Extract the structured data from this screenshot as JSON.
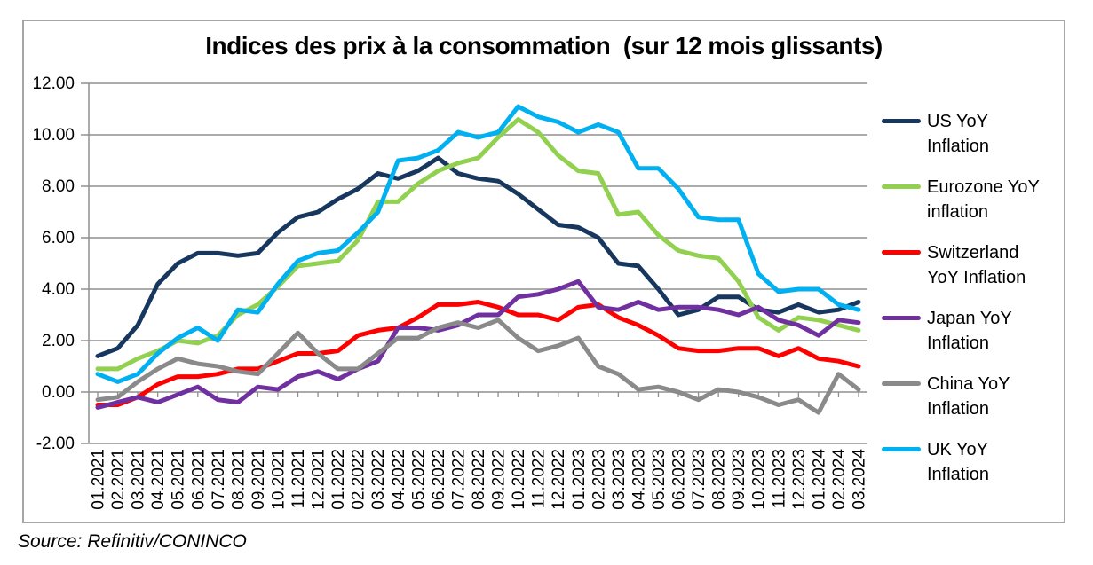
{
  "window": {
    "background_color": "#ffffff",
    "frame_border_color": "#a6a6a6"
  },
  "source_note": "Source: Refinitiv/CONINCO",
  "chart_data": {
    "type": "line",
    "title": "Indices des prix à la consommation  (sur 12 mois glissants)",
    "xlabel": "",
    "ylabel": "",
    "ylim": [
      -2,
      12
    ],
    "ytick_step": 2,
    "ytick_labels": [
      "12.00",
      "10.00",
      "8.00",
      "6.00",
      "4.00",
      "2.00",
      "0.00",
      "-2.00"
    ],
    "grid": true,
    "grid_color": "#8f8f8f",
    "legend_position": "right",
    "x_labels": [
      "01.2021",
      "02.2021",
      "03.2021",
      "04.2021",
      "05.2021",
      "06.2021",
      "07.2021",
      "08.2021",
      "09.2021",
      "10.2021",
      "11.2021",
      "12.2021",
      "01.2022",
      "02.2022",
      "03.2022",
      "04.2022",
      "05.2022",
      "06.2022",
      "07.2022",
      "08.2022",
      "09.2022",
      "10.2022",
      "11.2022",
      "12.2022",
      "01.2023",
      "02.2023",
      "03.2023",
      "04.2023",
      "05.2023",
      "06.2023",
      "07.2023",
      "08.2023",
      "09.2023",
      "10.2023",
      "11.2023",
      "12.2023",
      "01.2024",
      "02.2024",
      "03.2024"
    ],
    "series": [
      {
        "name": "US YoY Inflation",
        "legend_lines": [
          "US YoY",
          "Inflation"
        ],
        "color": "#17375E",
        "values": [
          1.4,
          1.7,
          2.6,
          4.2,
          5.0,
          5.4,
          5.4,
          5.3,
          5.4,
          6.2,
          6.8,
          7.0,
          7.5,
          7.9,
          8.5,
          8.3,
          8.6,
          9.1,
          8.5,
          8.3,
          8.2,
          7.7,
          7.1,
          6.5,
          6.4,
          6.0,
          5.0,
          4.9,
          4.0,
          3.0,
          3.2,
          3.7,
          3.7,
          3.2,
          3.1,
          3.4,
          3.1,
          3.2,
          3.5
        ]
      },
      {
        "name": "Eurozone YoY inflation",
        "legend_lines": [
          "Eurozone YoY",
          "inflation"
        ],
        "color": "#92D050",
        "values": [
          0.9,
          0.9,
          1.3,
          1.6,
          2.0,
          1.9,
          2.2,
          3.0,
          3.4,
          4.1,
          4.9,
          5.0,
          5.1,
          5.9,
          7.4,
          7.4,
          8.1,
          8.6,
          8.9,
          9.1,
          9.9,
          10.6,
          10.1,
          9.2,
          8.6,
          8.5,
          6.9,
          7.0,
          6.1,
          5.5,
          5.3,
          5.2,
          4.3,
          2.9,
          2.4,
          2.9,
          2.8,
          2.6,
          2.4
        ]
      },
      {
        "name": "Switzerland YoY Inflation",
        "legend_lines": [
          "Switzerland",
          "YoY Inflation"
        ],
        "color": "#FF0000",
        "values": [
          -0.5,
          -0.5,
          -0.2,
          0.3,
          0.6,
          0.6,
          0.7,
          0.9,
          0.9,
          1.2,
          1.5,
          1.5,
          1.6,
          2.2,
          2.4,
          2.5,
          2.9,
          3.4,
          3.4,
          3.5,
          3.3,
          3.0,
          3.0,
          2.8,
          3.3,
          3.4,
          2.9,
          2.6,
          2.2,
          1.7,
          1.6,
          1.6,
          1.7,
          1.7,
          1.4,
          1.7,
          1.3,
          1.2,
          1.0
        ]
      },
      {
        "name": "Japan YoY Inflation",
        "legend_lines": [
          "Japan YoY",
          "Inflation"
        ],
        "color": "#7030A0",
        "values": [
          -0.6,
          -0.4,
          -0.2,
          -0.4,
          -0.1,
          0.2,
          -0.3,
          -0.4,
          0.2,
          0.1,
          0.6,
          0.8,
          0.5,
          0.9,
          1.2,
          2.5,
          2.5,
          2.4,
          2.6,
          3.0,
          3.0,
          3.7,
          3.8,
          4.0,
          4.3,
          3.3,
          3.2,
          3.5,
          3.2,
          3.3,
          3.3,
          3.2,
          3.0,
          3.3,
          2.8,
          2.6,
          2.2,
          2.8,
          2.7
        ]
      },
      {
        "name": "China YoY Inflation",
        "legend_lines": [
          "China YoY",
          "Inflation"
        ],
        "color": "#8A8A8A",
        "values": [
          -0.3,
          -0.2,
          0.4,
          0.9,
          1.3,
          1.1,
          1.0,
          0.8,
          0.7,
          1.5,
          2.3,
          1.5,
          0.9,
          0.9,
          1.5,
          2.1,
          2.1,
          2.5,
          2.7,
          2.5,
          2.8,
          2.1,
          1.6,
          1.8,
          2.1,
          1.0,
          0.7,
          0.1,
          0.2,
          0.0,
          -0.3,
          0.1,
          0.0,
          -0.2,
          -0.5,
          -0.3,
          -0.8,
          0.7,
          0.1
        ]
      },
      {
        "name": "UK YoY Inflation",
        "legend_lines": [
          "UK YoY",
          "Inflation"
        ],
        "color": "#00B0F0",
        "values": [
          0.7,
          0.4,
          0.7,
          1.5,
          2.1,
          2.5,
          2.0,
          3.2,
          3.1,
          4.2,
          5.1,
          5.4,
          5.5,
          6.2,
          7.0,
          9.0,
          9.1,
          9.4,
          10.1,
          9.9,
          10.1,
          11.1,
          10.7,
          10.5,
          10.1,
          10.4,
          10.1,
          8.7,
          8.7,
          7.9,
          6.8,
          6.7,
          6.7,
          4.6,
          3.9,
          4.0,
          4.0,
          3.4,
          3.2
        ]
      }
    ]
  }
}
